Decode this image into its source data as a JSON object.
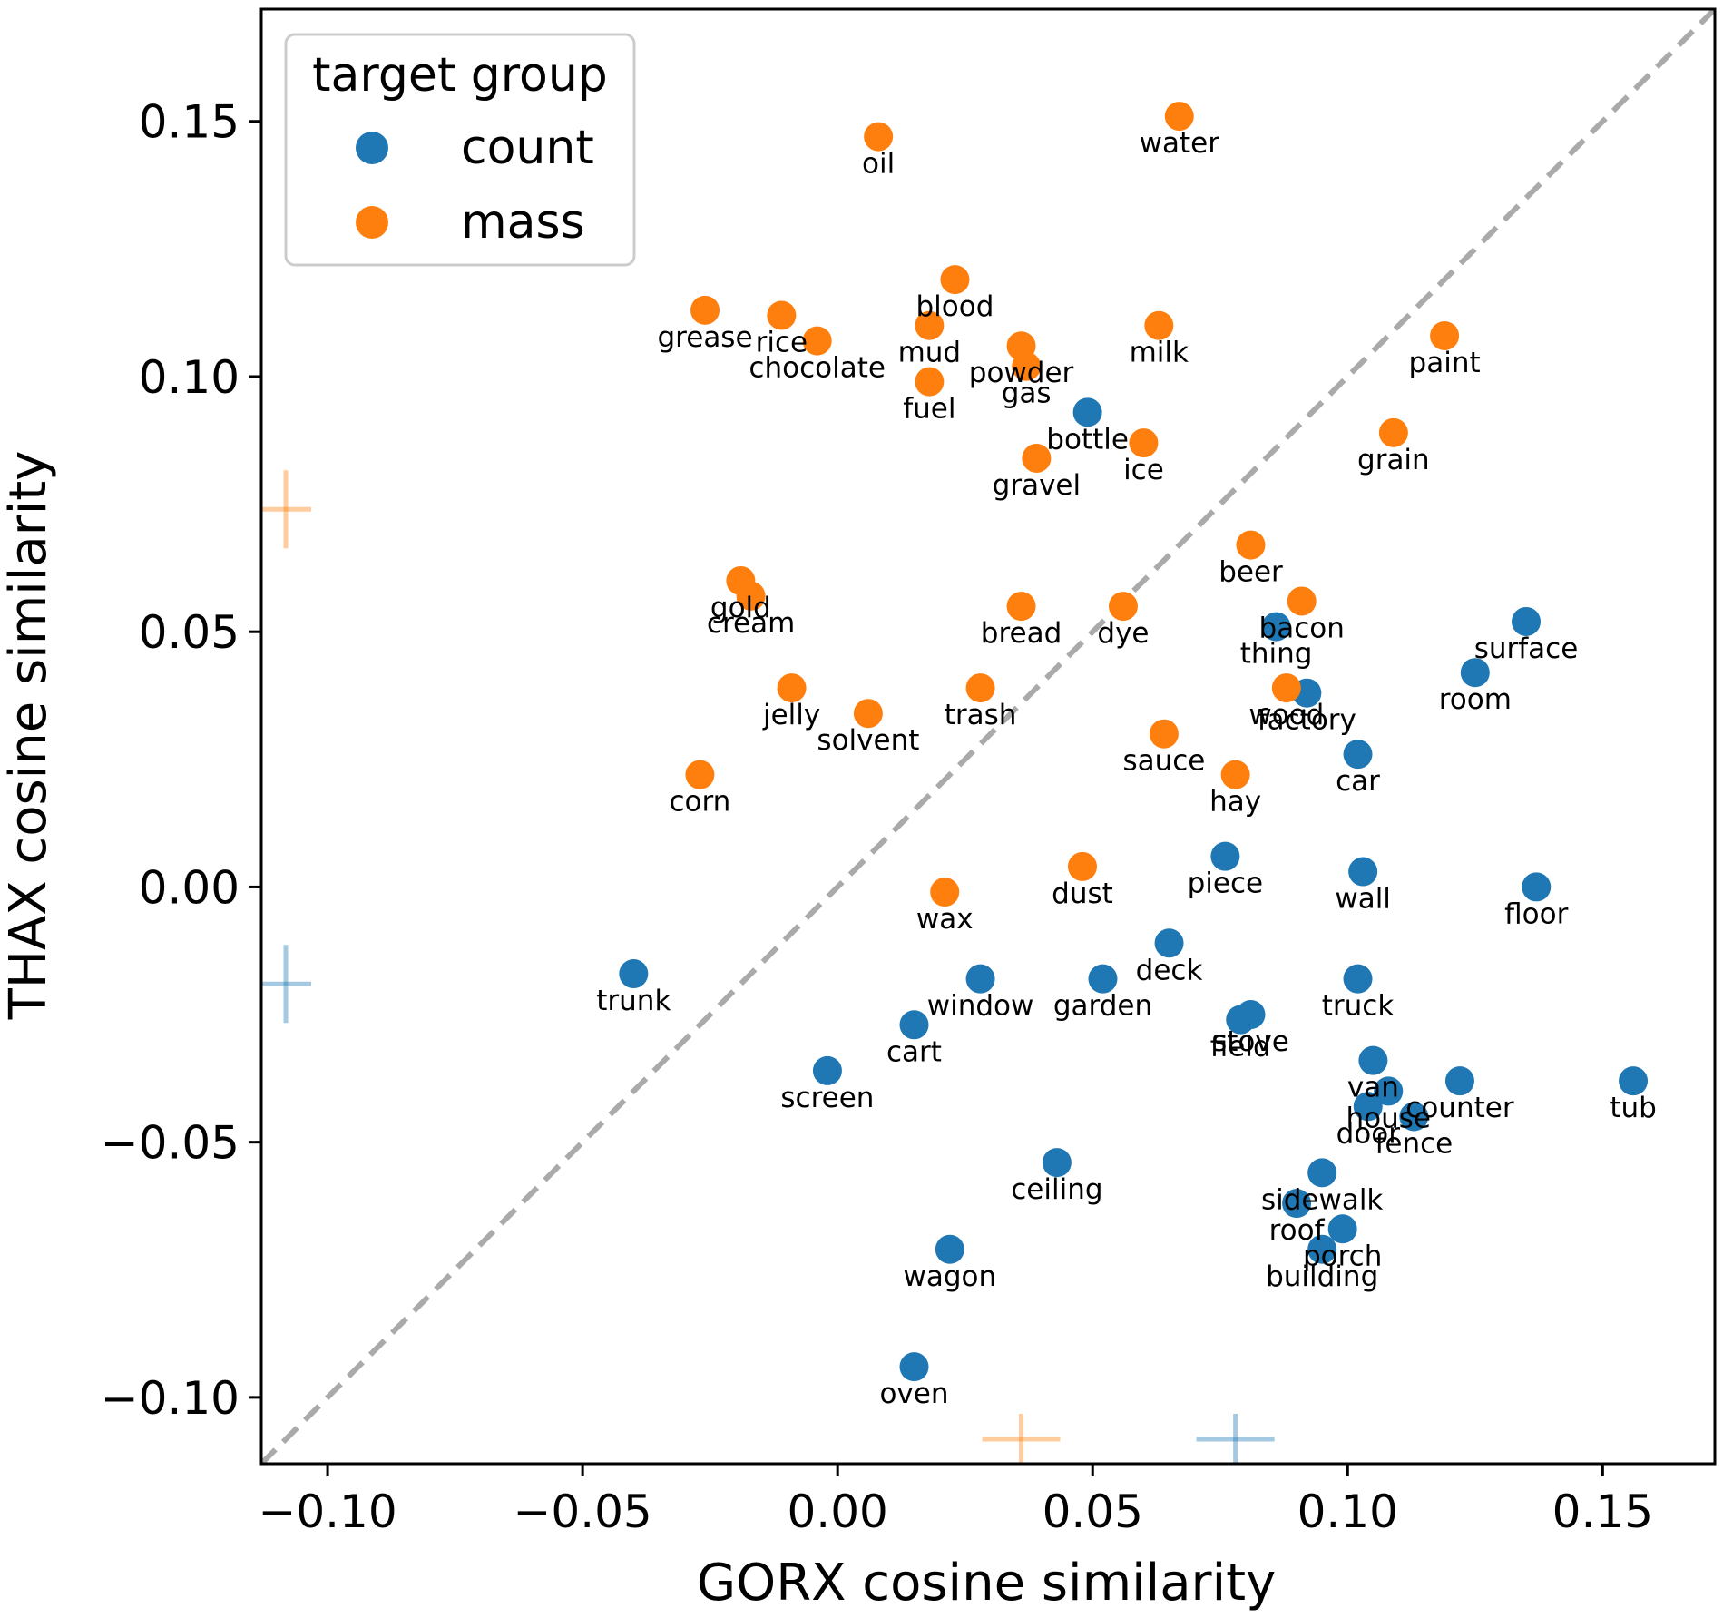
{
  "chart_data": {
    "type": "scatter",
    "xlabel": "GORX cosine similarity",
    "ylabel": "THAX cosine similarity",
    "xlim": [
      -0.113,
      0.172
    ],
    "ylim": [
      -0.113,
      0.172
    ],
    "xticks": [
      -0.1,
      -0.05,
      0.0,
      0.05,
      0.1,
      0.15
    ],
    "yticks": [
      -0.1,
      -0.05,
      0.0,
      0.05,
      0.1,
      0.15
    ],
    "xtick_labels": [
      "−0.10",
      "−0.05",
      "0.00",
      "0.05",
      "0.10",
      "0.15"
    ],
    "ytick_labels": [
      "−0.10",
      "−0.05",
      "0.00",
      "0.05",
      "0.10",
      "0.15"
    ],
    "diagonal": "y = x (dashed)",
    "grid": false,
    "legend": {
      "title": "target group",
      "placement": "top-left",
      "entries": [
        {
          "name": "count",
          "color": "#1f77b4"
        },
        {
          "name": "mass",
          "color": "#ff7f0e"
        }
      ]
    },
    "series": [
      {
        "name": "count",
        "color": "#1f77b4",
        "points": [
          {
            "label": "bottle",
            "x": 0.049,
            "y": 0.093
          },
          {
            "label": "thing",
            "x": 0.086,
            "y": 0.051
          },
          {
            "label": "factory",
            "x": 0.092,
            "y": 0.038
          },
          {
            "label": "surface",
            "x": 0.135,
            "y": 0.052
          },
          {
            "label": "room",
            "x": 0.125,
            "y": 0.042
          },
          {
            "label": "car",
            "x": 0.102,
            "y": 0.026
          },
          {
            "label": "piece",
            "x": 0.076,
            "y": 0.006
          },
          {
            "label": "wall",
            "x": 0.103,
            "y": 0.003
          },
          {
            "label": "floor",
            "x": 0.137,
            "y": 0.0
          },
          {
            "label": "deck",
            "x": 0.065,
            "y": -0.011
          },
          {
            "label": "trunk",
            "x": -0.04,
            "y": -0.017
          },
          {
            "label": "window",
            "x": 0.028,
            "y": -0.018
          },
          {
            "label": "garden",
            "x": 0.052,
            "y": -0.018
          },
          {
            "label": "truck",
            "x": 0.102,
            "y": -0.018
          },
          {
            "label": "cart",
            "x": 0.015,
            "y": -0.027
          },
          {
            "label": "stove",
            "x": 0.081,
            "y": -0.025
          },
          {
            "label": "field",
            "x": 0.079,
            "y": -0.026
          },
          {
            "label": "screen",
            "x": -0.002,
            "y": -0.036
          },
          {
            "label": "van",
            "x": 0.105,
            "y": -0.034
          },
          {
            "label": "house",
            "x": 0.108,
            "y": -0.04
          },
          {
            "label": "door",
            "x": 0.104,
            "y": -0.043
          },
          {
            "label": "fence",
            "x": 0.113,
            "y": -0.045
          },
          {
            "label": "counter",
            "x": 0.122,
            "y": -0.038
          },
          {
            "label": "tub",
            "x": 0.156,
            "y": -0.038
          },
          {
            "label": "ceiling",
            "x": 0.043,
            "y": -0.054
          },
          {
            "label": "sidewalk",
            "x": 0.095,
            "y": -0.056
          },
          {
            "label": "roof",
            "x": 0.09,
            "y": -0.062
          },
          {
            "label": "porch",
            "x": 0.099,
            "y": -0.067
          },
          {
            "label": "building",
            "x": 0.095,
            "y": -0.071
          },
          {
            "label": "wagon",
            "x": 0.022,
            "y": -0.071
          },
          {
            "label": "oven",
            "x": 0.015,
            "y": -0.094
          }
        ],
        "mean": {
          "x": 0.078,
          "y": -0.019
        }
      },
      {
        "name": "mass",
        "color": "#ff7f0e",
        "points": [
          {
            "label": "water",
            "x": 0.067,
            "y": 0.151
          },
          {
            "label": "oil",
            "x": 0.008,
            "y": 0.147
          },
          {
            "label": "blood",
            "x": 0.023,
            "y": 0.119
          },
          {
            "label": "grease",
            "x": -0.026,
            "y": 0.113
          },
          {
            "label": "rice",
            "x": -0.011,
            "y": 0.112
          },
          {
            "label": "chocolate",
            "x": -0.004,
            "y": 0.107
          },
          {
            "label": "mud",
            "x": 0.018,
            "y": 0.11
          },
          {
            "label": "powder",
            "x": 0.036,
            "y": 0.106
          },
          {
            "label": "gas",
            "x": 0.037,
            "y": 0.102
          },
          {
            "label": "fuel",
            "x": 0.018,
            "y": 0.099
          },
          {
            "label": "milk",
            "x": 0.063,
            "y": 0.11
          },
          {
            "label": "paint",
            "x": 0.119,
            "y": 0.108
          },
          {
            "label": "grain",
            "x": 0.109,
            "y": 0.089
          },
          {
            "label": "ice",
            "x": 0.06,
            "y": 0.087
          },
          {
            "label": "gravel",
            "x": 0.039,
            "y": 0.084
          },
          {
            "label": "beer",
            "x": 0.081,
            "y": 0.067
          },
          {
            "label": "gold",
            "x": -0.019,
            "y": 0.06
          },
          {
            "label": "cream",
            "x": -0.017,
            "y": 0.057
          },
          {
            "label": "bread",
            "x": 0.036,
            "y": 0.055
          },
          {
            "label": "dye",
            "x": 0.056,
            "y": 0.055
          },
          {
            "label": "bacon",
            "x": 0.091,
            "y": 0.056
          },
          {
            "label": "jelly",
            "x": -0.009,
            "y": 0.039
          },
          {
            "label": "solvent",
            "x": 0.006,
            "y": 0.034
          },
          {
            "label": "trash",
            "x": 0.028,
            "y": 0.039
          },
          {
            "label": "wood",
            "x": 0.088,
            "y": 0.039
          },
          {
            "label": "sauce",
            "x": 0.064,
            "y": 0.03
          },
          {
            "label": "corn",
            "x": -0.027,
            "y": 0.022
          },
          {
            "label": "hay",
            "x": 0.078,
            "y": 0.022
          },
          {
            "label": "dust",
            "x": 0.048,
            "y": 0.004
          },
          {
            "label": "wax",
            "x": 0.021,
            "y": -0.001
          }
        ],
        "mean": {
          "x": 0.036,
          "y": 0.074
        }
      }
    ]
  }
}
